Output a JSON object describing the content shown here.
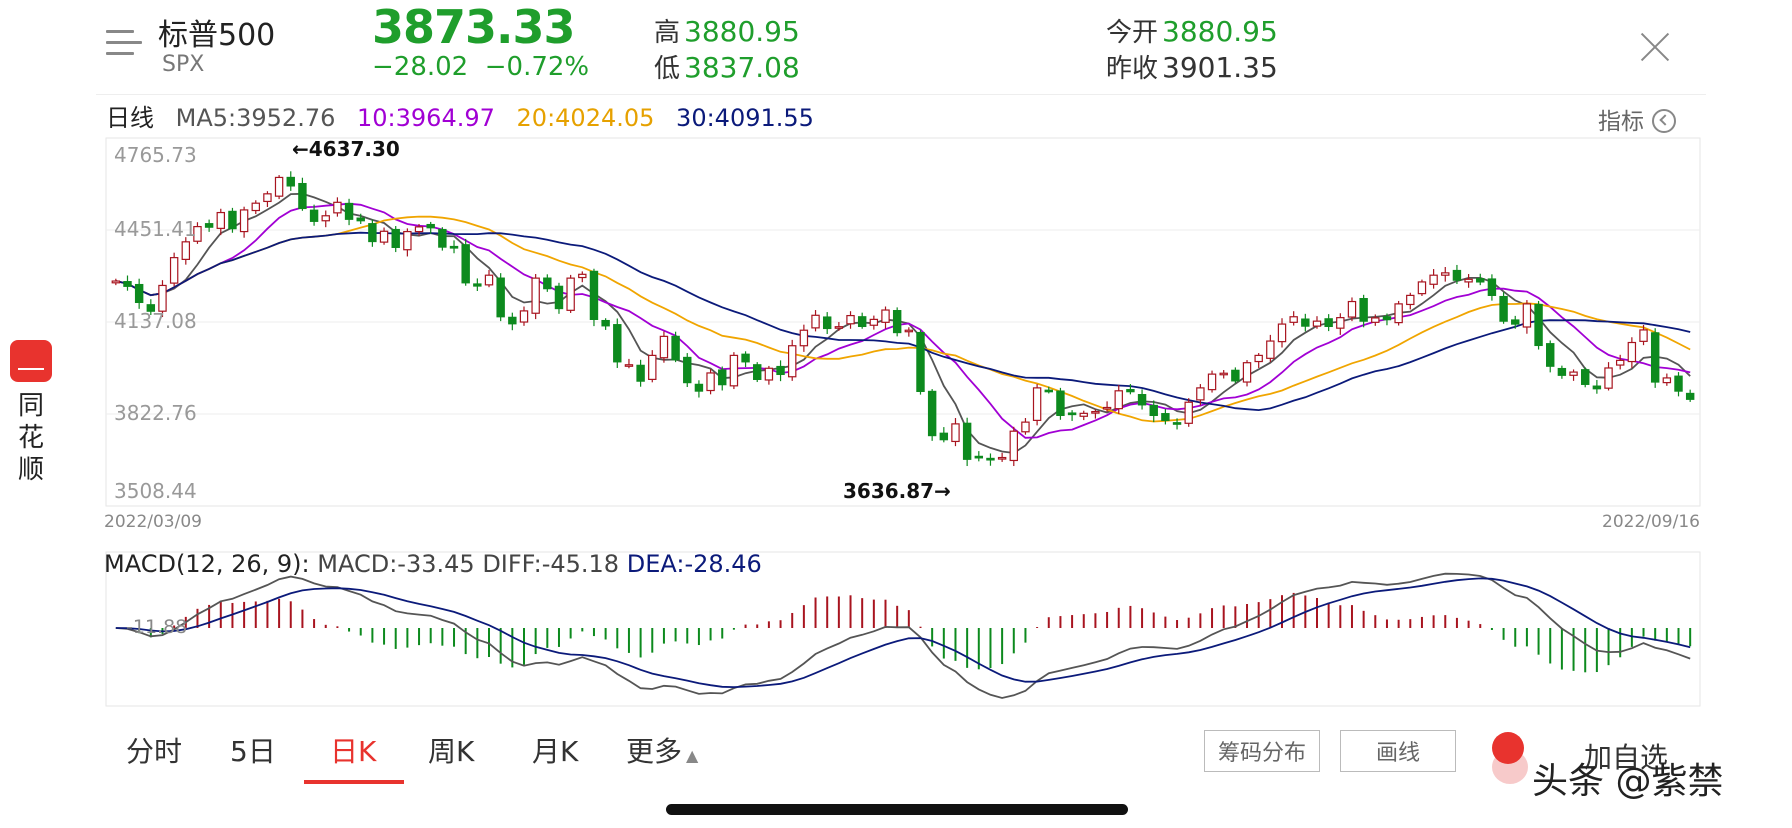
{
  "header": {
    "name": "标普500",
    "code": "SPX",
    "price": "3873.33",
    "change": "−28.02",
    "change_pct": "−0.72%",
    "high_label": "高",
    "high": "3880.95",
    "low_label": "低",
    "low": "3837.08",
    "open_label": "今开",
    "open": "3880.95",
    "prev_close_label": "昨收",
    "prev_close": "3901.35"
  },
  "ma": {
    "period": "日线",
    "ma5": "MA5:3952.76",
    "ma10": "10:3964.97",
    "ma20": "20:4024.05",
    "ma30": "30:4091.55"
  },
  "indicator_label": "指标",
  "kline": {
    "y_ticks": [
      "4765.73",
      "4451.41",
      "4137.08",
      "3822.76",
      "3508.44"
    ],
    "max_annotation": "←4637.30",
    "min_annotation": "3636.87→",
    "start_date": "2022/03/09",
    "end_date": "2022/09/16"
  },
  "macd": {
    "label": "MACD(12, 26, 9):",
    "macd": "MACD:-33.45",
    "diff": "DIFF:-45.18",
    "dea": "DEA:-28.46",
    "zero_tick": "-11.88"
  },
  "side_app": {
    "text": "同花顺"
  },
  "tabs": [
    "分时",
    "5日",
    "日K",
    "周K",
    "月K",
    "更多"
  ],
  "buttons": {
    "chip": "筹码分布",
    "draw": "画线",
    "add": "加自选"
  },
  "watermark": "头条 @紫禁",
  "colors": {
    "up": "#a8141f",
    "down": "#0d8a1e",
    "accent": "#e8332e",
    "ma5": "#555555",
    "ma10": "#a100d4",
    "ma20": "#f0a500",
    "ma30": "#0b1a7a"
  },
  "chart_data": {
    "type": "candlestick",
    "x_range": [
      "2022/03/09",
      "2022/09/16"
    ],
    "ylim": [
      3508.44,
      4765.73
    ],
    "close": [
      4277,
      4259,
      4204,
      4174,
      4262,
      4357,
      4411,
      4463,
      4461,
      4511,
      4456,
      4520,
      4543,
      4575,
      4631,
      4602,
      4525,
      4481,
      4500,
      4546,
      4488,
      4483,
      4412,
      4447,
      4392,
      4446,
      4462,
      4459,
      4393,
      4391,
      4271,
      4260,
      4297,
      4155,
      4131,
      4175,
      4287,
      4251,
      4183,
      4287,
      4300,
      4146,
      4124,
      4001,
      3991,
      3935,
      4023,
      4088,
      4008,
      3930,
      3901,
      3963,
      3923,
      4023,
      4001,
      3941,
      3979,
      3958,
      4056,
      4109,
      4160,
      4115,
      4121,
      4159,
      4122,
      4146,
      4178,
      4101,
      4109,
      3900,
      3749,
      3735,
      3789,
      3668,
      3675,
      3667,
      3674,
      3764,
      3795,
      3912,
      3901,
      3818,
      3821,
      3825,
      3831,
      3845,
      3902,
      3899,
      3854,
      3818,
      3801,
      3791,
      3863,
      3912,
      3959,
      3962,
      3936,
      3998,
      4023,
      4072,
      4130,
      4155,
      4123,
      4140,
      4122,
      4152,
      4207,
      4140,
      4151,
      4145,
      4199,
      4228,
      4274,
      4297,
      4305,
      4280,
      4283,
      4274,
      4228,
      4140,
      4130,
      4199,
      4057,
      3986,
      3955,
      3966,
      3924,
      3909,
      3980,
      4006,
      4067,
      4110,
      3932,
      3946,
      3901,
      3873
    ],
    "high_annotation": 4637.3,
    "low_annotation": 3636.87,
    "macd_panel": {
      "zero_line": -11.88,
      "macd": -33.45,
      "diff": -45.18,
      "dea": -28.46
    }
  }
}
